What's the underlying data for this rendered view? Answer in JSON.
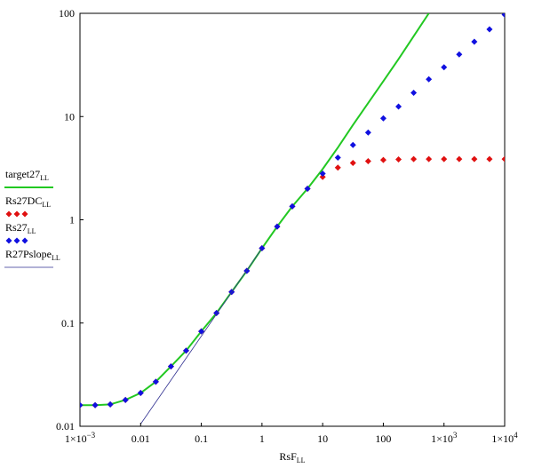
{
  "chart_data": {
    "type": "line",
    "x_label": "RsF",
    "x_label_sub": "LL",
    "log_x": true,
    "log_y": true,
    "grid": false,
    "xlim": [
      0.001,
      10000
    ],
    "ylim": [
      0.01,
      100
    ],
    "xticks": [
      {
        "value": 0.001,
        "label": "1×10^−3"
      },
      0.01,
      0.1,
      1,
      10,
      100,
      {
        "value": 1000,
        "label": "1×10^3"
      },
      {
        "value": 10000,
        "label": "1×10^4"
      }
    ],
    "yticks": [
      0.01,
      0.1,
      1,
      10,
      100
    ],
    "legend": "left",
    "x": [
      0.001,
      0.00178,
      0.00316,
      0.00562,
      0.01,
      0.0178,
      0.0316,
      0.0562,
      0.1,
      0.178,
      0.316,
      0.562,
      1,
      1.78,
      3.16,
      5.62,
      10,
      17.8,
      31.6,
      56.2,
      100,
      178,
      316,
      562,
      1000,
      1780,
      3160,
      5620,
      10000
    ],
    "series": [
      {
        "name": "target27",
        "name_sub": "LL",
        "style": "line",
        "color": "#22c822",
        "width": 2,
        "values": [
          0.016,
          0.016,
          0.0163,
          0.018,
          0.021,
          0.027,
          0.038,
          0.054,
          0.083,
          0.125,
          0.2,
          0.32,
          0.53,
          0.86,
          1.35,
          2.0,
          3.1,
          5.0,
          8.3,
          13.5,
          22,
          36,
          60,
          100,
          null,
          null,
          null,
          null,
          null
        ]
      },
      {
        "name": "Rs27DC",
        "name_sub": "LL",
        "style": "diamond",
        "color": "#e01010",
        "values": [
          0.016,
          0.016,
          0.0163,
          0.018,
          0.021,
          0.027,
          0.038,
          0.054,
          0.083,
          0.125,
          0.2,
          0.32,
          0.53,
          0.86,
          1.35,
          2.0,
          2.6,
          3.2,
          3.55,
          3.7,
          3.8,
          3.85,
          3.87,
          3.87,
          3.87,
          3.87,
          3.87,
          3.87,
          3.87
        ]
      },
      {
        "name": "Rs27",
        "name_sub": "LL",
        "style": "diamond",
        "color": "#1010e0",
        "values": [
          0.016,
          0.016,
          0.0163,
          0.018,
          0.021,
          0.027,
          0.038,
          0.054,
          0.083,
          0.125,
          0.2,
          0.32,
          0.53,
          0.86,
          1.35,
          2.0,
          2.8,
          4.0,
          5.3,
          7.0,
          9.6,
          12.5,
          17,
          23,
          30,
          40,
          53,
          70,
          97
        ]
      },
      {
        "name": "R27Pslope",
        "name_sub": "LL",
        "style": "line",
        "color": "#303090",
        "width": 0.8,
        "x": [
          0.01,
          1
        ],
        "values": [
          0.0105,
          0.53
        ]
      }
    ]
  }
}
